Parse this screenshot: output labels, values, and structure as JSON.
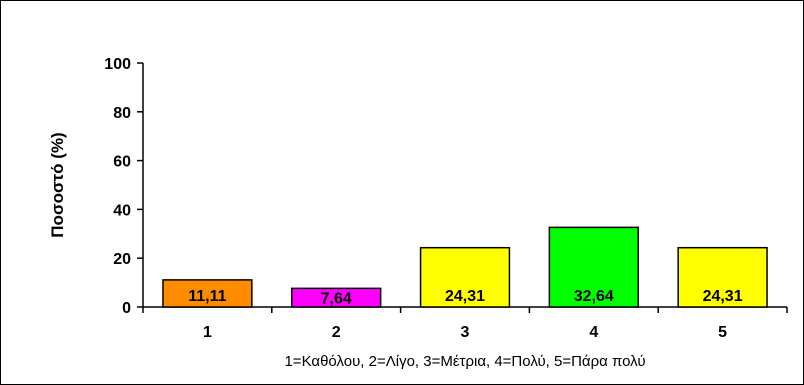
{
  "chart_data": {
    "type": "bar",
    "title": "",
    "categories": [
      "1",
      "2",
      "3",
      "4",
      "5"
    ],
    "values": [
      11.11,
      7.64,
      24.31,
      32.64,
      24.31
    ],
    "value_labels": [
      "11,11",
      "7,64",
      "24,31",
      "32,64",
      "24,31"
    ],
    "bar_colors": [
      "#FF8C00",
      "#FF00FF",
      "#FFFF00",
      "#00FF00",
      "#FFFF00"
    ],
    "ylabel": "Ποσοστό (%)",
    "xlabel": "1=Καθόλου, 2=Λίγο, 3=Μέτρια, 4=Πολύ, 5=Πάρα πολύ",
    "ylim": [
      0,
      100
    ],
    "yticks": [
      0,
      20,
      40,
      60,
      80,
      100
    ],
    "grid": false,
    "legend": "none"
  }
}
